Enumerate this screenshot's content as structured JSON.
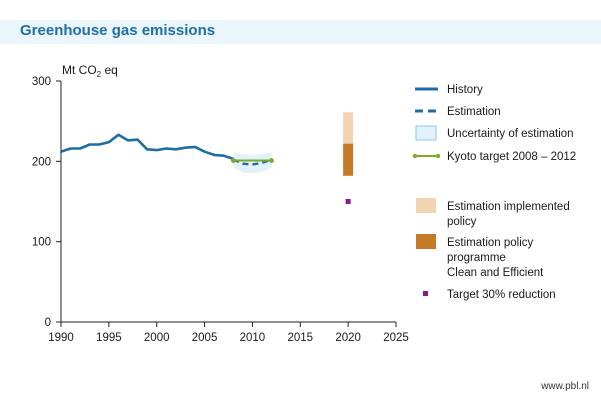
{
  "header": {
    "title": "Greenhouse gas emissions"
  },
  "footer": {
    "source": "www.pbl.nl"
  },
  "colors": {
    "history": "#1b6ea5",
    "estimation": "#1b6ea5",
    "uncertainty_fill": "#e3f1fa",
    "uncertainty_stroke": "#8fc6e5",
    "kyoto": "#7cab2a",
    "implemented": "#f2d4b2",
    "programme": "#c47a26",
    "target": "#8b1c86",
    "axis": "#222222"
  },
  "chart_data": {
    "type": "line",
    "title": "Greenhouse gas emissions",
    "ylabel_prefix": "Mt CO",
    "ylabel_sub": "2",
    "ylabel_suffix": " eq",
    "xlim": [
      1990,
      2025
    ],
    "ylim": [
      0,
      300
    ],
    "xticks": [
      1990,
      1995,
      2000,
      2005,
      2010,
      2015,
      2020,
      2025
    ],
    "yticks": [
      0,
      100,
      200,
      300
    ],
    "series": [
      {
        "name": "History",
        "style": "solid",
        "x": [
          1990,
          1991,
          1992,
          1993,
          1994,
          1995,
          1996,
          1997,
          1998,
          1999,
          2000,
          2001,
          2002,
          2003,
          2004,
          2005,
          2006,
          2007,
          2008
        ],
        "y": [
          212,
          216,
          216,
          221,
          221,
          224,
          233,
          226,
          227,
          215,
          214,
          216,
          215,
          217,
          218,
          212,
          208,
          207,
          203
        ]
      },
      {
        "name": "Estimation",
        "style": "dashed",
        "x": [
          2008,
          2009,
          2010,
          2011,
          2012
        ],
        "y": [
          202,
          197,
          196,
          198,
          202
        ]
      },
      {
        "name": "Kyoto target 2008 – 2012",
        "style": "marker-line",
        "x": [
          2008,
          2012
        ],
        "y": [
          201,
          201
        ]
      }
    ],
    "uncertainty": {
      "name": "Uncertainty of estimation",
      "x": [
        2008,
        2009,
        2010,
        2011,
        2012
      ],
      "low": [
        192,
        186,
        185,
        187,
        192
      ],
      "high": [
        211,
        209,
        208,
        209,
        211
      ]
    },
    "bars_2020": [
      {
        "name": "Estimation implemented policy",
        "x": 2020,
        "low": 222,
        "high": 261
      },
      {
        "name": "Estimation policy programme Clean and Efficient",
        "x": 2020,
        "low": 182,
        "high": 222
      }
    ],
    "target_point": {
      "name": "Target 30% reduction",
      "x": 2020,
      "y": 150
    }
  },
  "legend": {
    "history": "History",
    "estimation": "Estimation",
    "uncertainty": "Uncertainty of estimation",
    "kyoto": "Kyoto target 2008 – 2012",
    "implemented_line1": "Estimation implemented",
    "implemented_line2": "policy",
    "programme_line1": "Estimation policy",
    "programme_line2": "programme",
    "programme_line3": "Clean and Efficient",
    "target": "Target 30% reduction"
  }
}
